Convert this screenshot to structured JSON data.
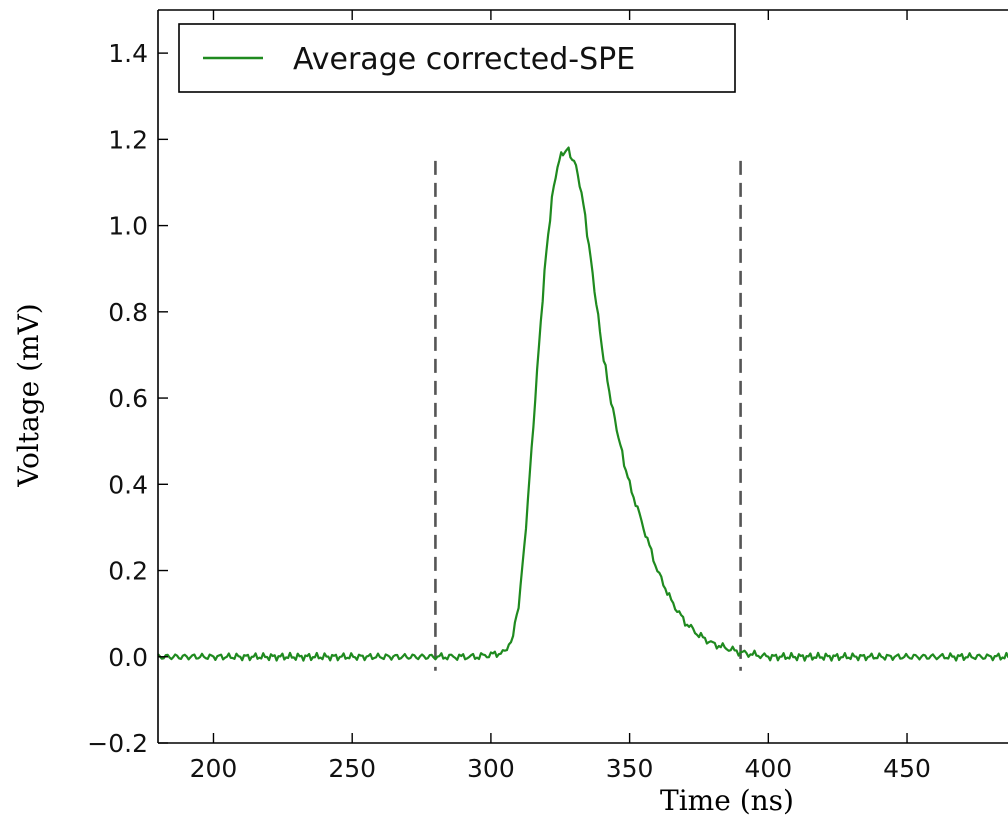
{
  "chart_data": {
    "type": "line",
    "title": "",
    "xlabel": "Time (ns)",
    "ylabel": "Voltage (mV)",
    "xlim": [
      180,
      490
    ],
    "ylim": [
      -0.2,
      1.5
    ],
    "x_ticks": [
      200,
      250,
      300,
      350,
      400,
      450
    ],
    "y_ticks": [
      -0.2,
      0.0,
      0.2,
      0.4,
      0.6,
      0.8,
      1.0,
      1.2,
      1.4
    ],
    "x_tick_labels": [
      "200",
      "250",
      "300",
      "350",
      "400",
      "450"
    ],
    "y_tick_labels": [
      "−0.2",
      "0.0",
      "0.2",
      "0.4",
      "0.6",
      "0.8",
      "1.0",
      "1.2",
      "1.4"
    ],
    "grid": false,
    "legend": {
      "placement": "upper-left",
      "entries": [
        "Average corrected-SPE"
      ]
    },
    "series": [
      {
        "name": "Average corrected-SPE",
        "color": "#1f8a1f",
        "x": [
          180,
          200,
          220,
          240,
          260,
          280,
          295,
          305,
          308,
          310,
          312,
          314,
          316,
          318,
          320,
          322,
          324,
          326,
          327,
          328,
          330,
          332,
          334,
          336,
          338,
          340,
          342,
          344,
          346,
          348,
          350,
          355,
          360,
          365,
          370,
          375,
          380,
          385,
          390,
          395,
          400,
          420,
          440,
          460,
          490
        ],
        "y": [
          0.0,
          0.0,
          0.0,
          0.0,
          0.0,
          0.0,
          0.0,
          0.01,
          0.05,
          0.12,
          0.25,
          0.42,
          0.6,
          0.78,
          0.94,
          1.06,
          1.14,
          1.17,
          1.17,
          1.17,
          1.15,
          1.1,
          1.02,
          0.92,
          0.82,
          0.72,
          0.64,
          0.57,
          0.51,
          0.45,
          0.4,
          0.3,
          0.2,
          0.13,
          0.08,
          0.05,
          0.03,
          0.02,
          0.01,
          0.005,
          0.0,
          0.0,
          0.0,
          0.0,
          0.0
        ]
      }
    ],
    "markers": [
      {
        "type": "vline",
        "x": 280,
        "ymin": 0.0,
        "ymax": 1.15,
        "style": "dashed",
        "color": "#555555"
      },
      {
        "type": "vline",
        "x": 390,
        "ymin": 0.0,
        "ymax": 1.15,
        "style": "dashed",
        "color": "#555555"
      }
    ]
  }
}
